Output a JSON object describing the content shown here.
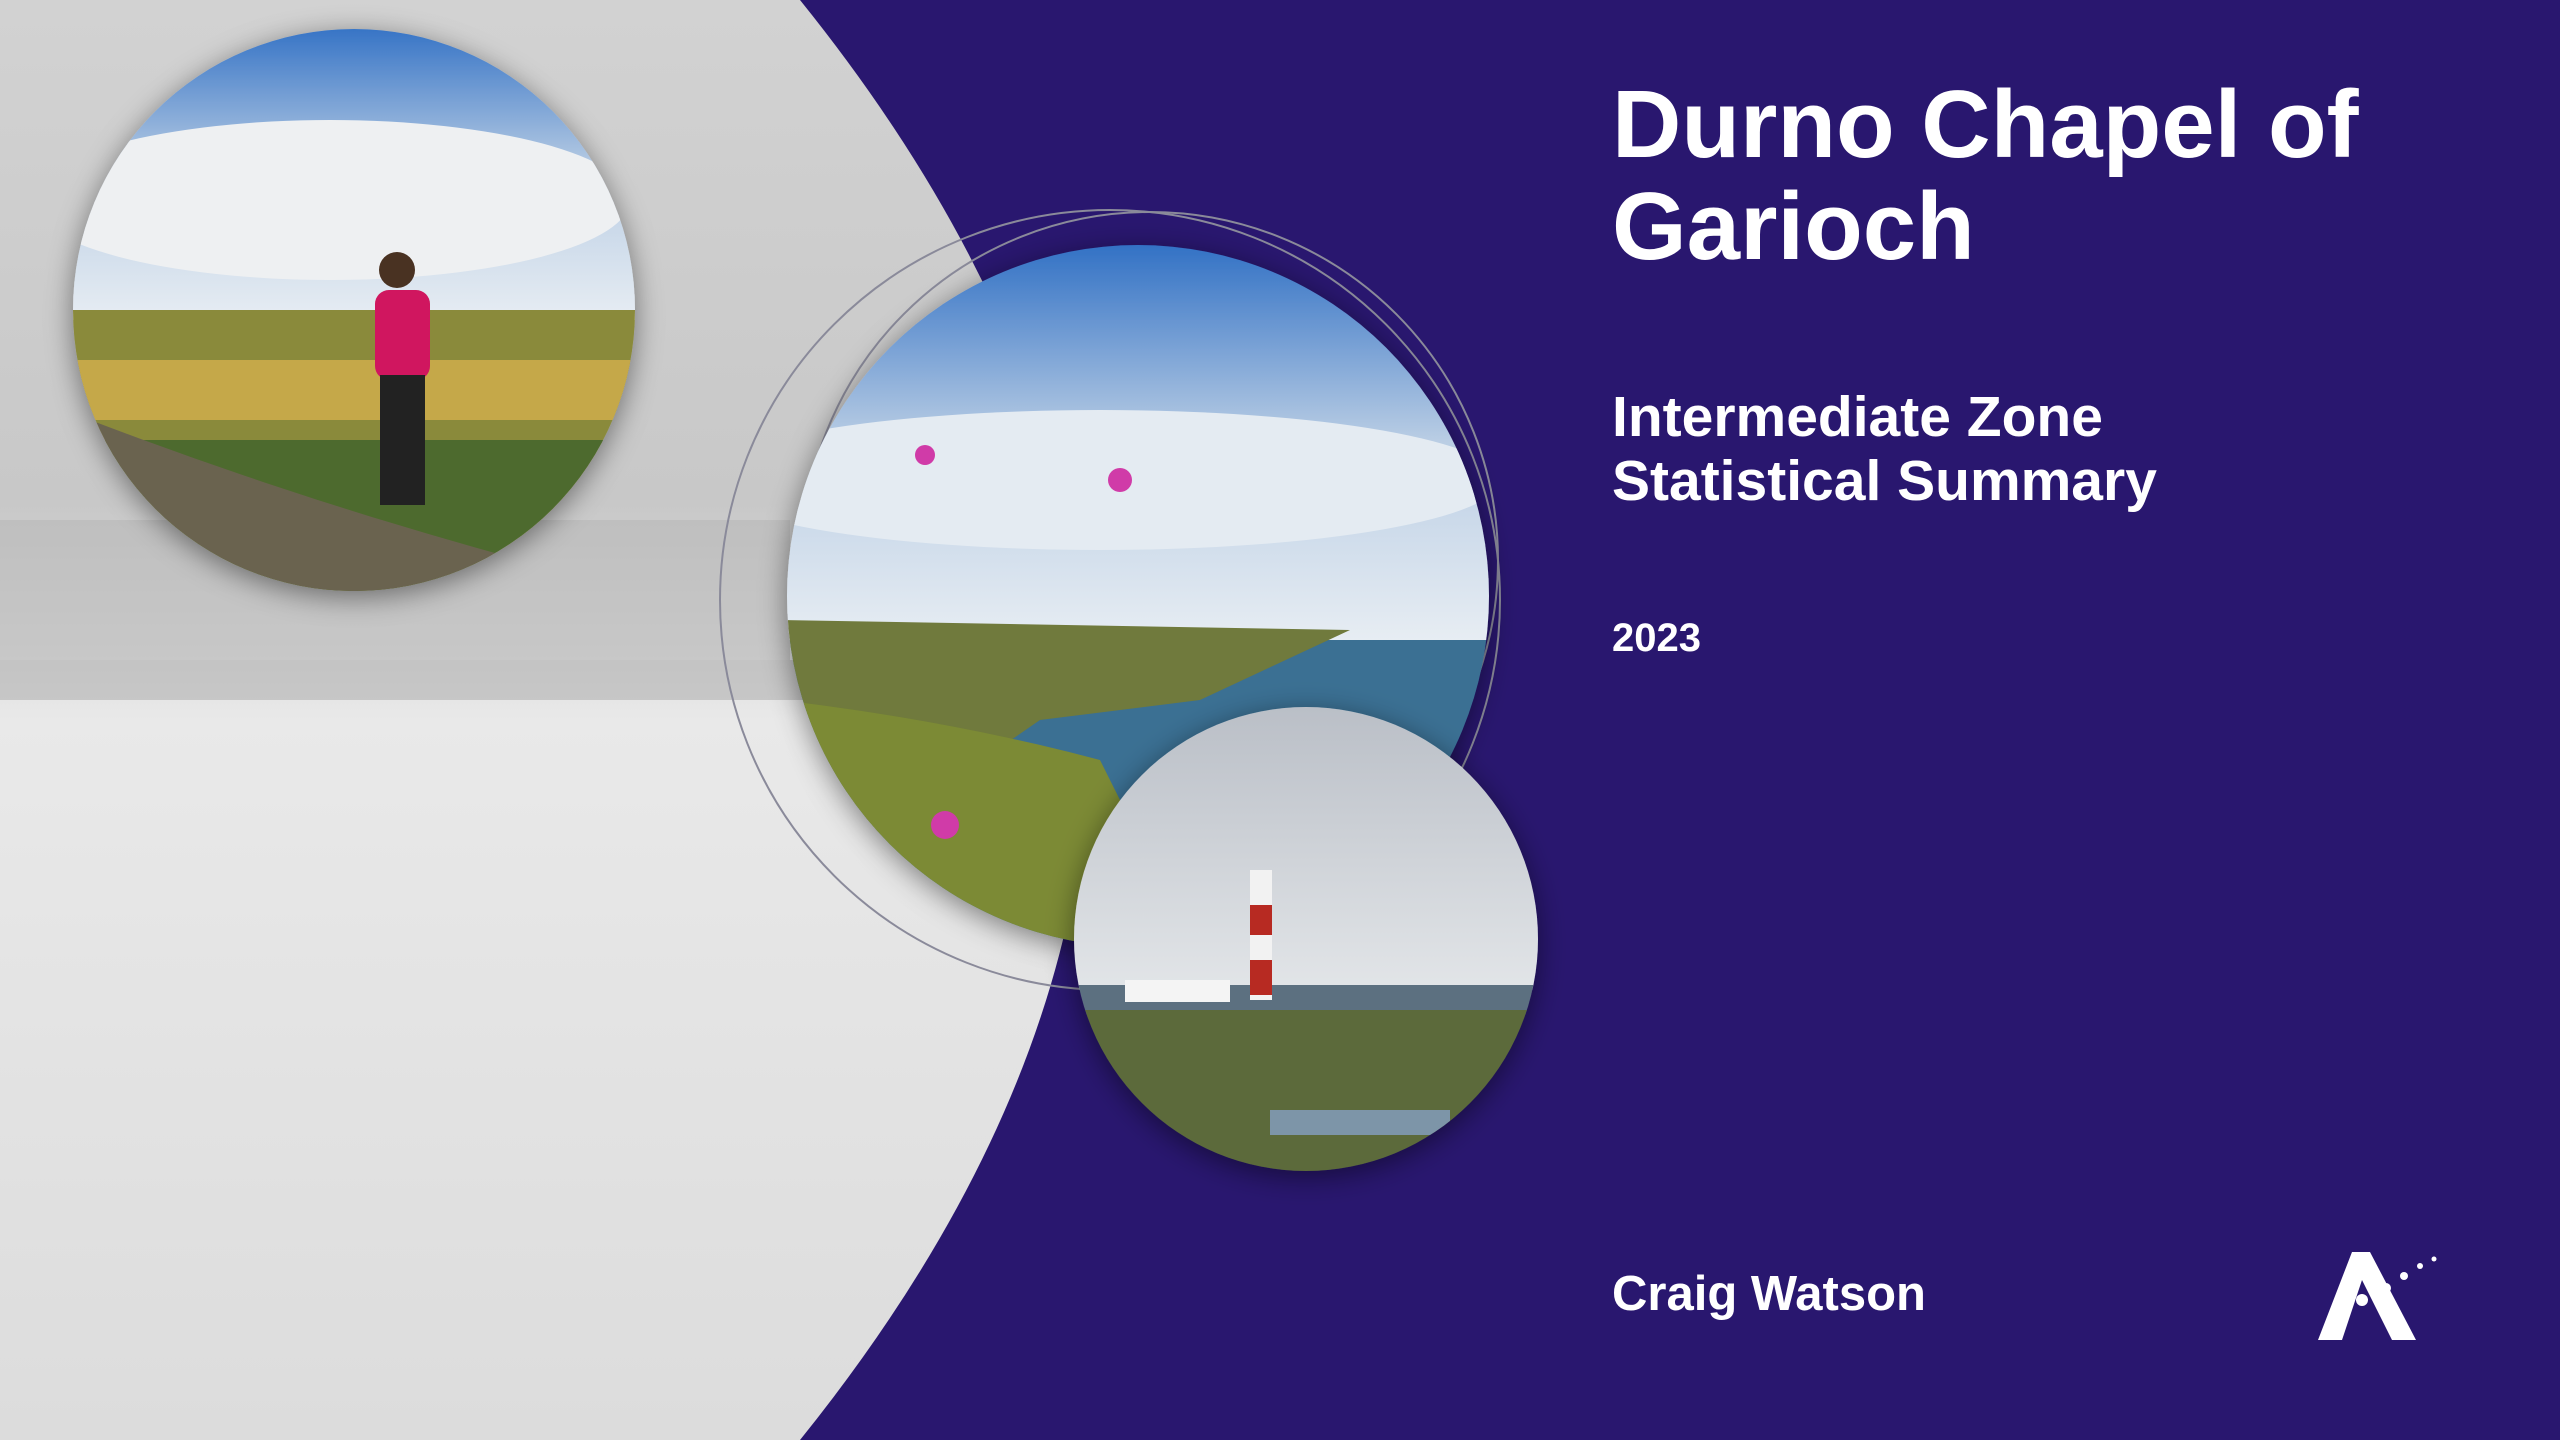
{
  "title": "Durno Chapel of Garioch",
  "subtitle": "Intermediate Zone Statistical Summary",
  "year": "2023",
  "author": "Craig Watson"
}
